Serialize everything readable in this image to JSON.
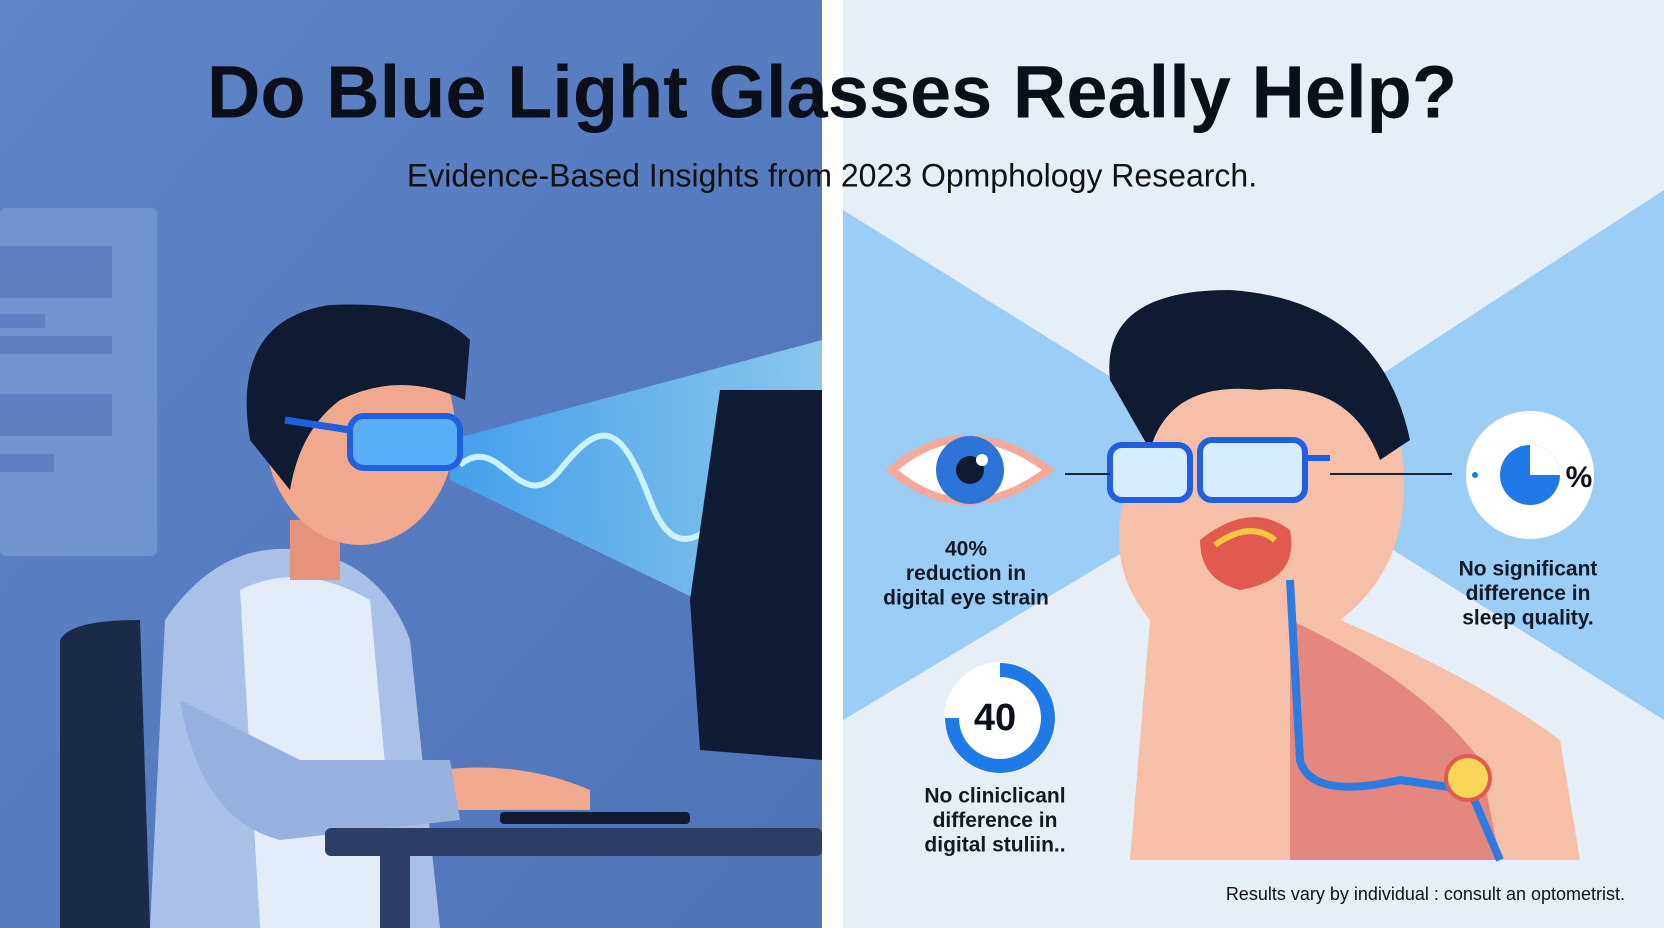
{
  "header": {
    "title": "Do Blue Light Glasses Really Help?",
    "subtitle": "Evidence-Based Insights from 2023 Opmphology Research."
  },
  "stats": [
    {
      "lines": [
        "40%",
        "reduction in",
        "digital eye strain"
      ]
    },
    {
      "lines": [
        "No significant",
        "difference in",
        "sleep quality."
      ]
    },
    {
      "lines": [
        "No cliniclicanl",
        "difference in",
        "digital stuliin.."
      ]
    }
  ],
  "icons": {
    "pie_label": "%",
    "donut_label": "40"
  },
  "footer": "Results vary by individual : consult an optometrist."
}
